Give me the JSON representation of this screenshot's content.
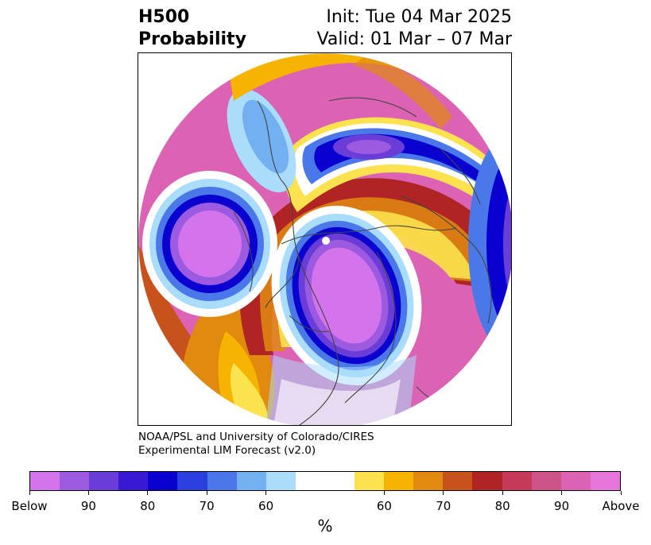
{
  "title": {
    "left_line1": "H500",
    "left_line2": "Probability",
    "right_line1": "Init: Tue 04 Mar 2025",
    "right_line2": "Valid: 01 Mar – 07 Mar"
  },
  "credit": {
    "line1": "NOAA/PSL and University of Colorado/CIRES",
    "line2": "Experimental LIM Forecast (v2.0)"
  },
  "colorbar": {
    "unit": "%",
    "tick_labels": [
      "Below",
      "90",
      "80",
      "70",
      "60",
      "60",
      "70",
      "80",
      "90",
      "Above"
    ],
    "colors": [
      "#d474ec",
      "#9c5ae0",
      "#6a3cd8",
      "#3a18d4",
      "#0a00d0",
      "#2a40dc",
      "#4a78e8",
      "#72b0f2",
      "#aadcfc",
      "#ffffff",
      "#fce24e",
      "#f6b400",
      "#e08a10",
      "#c8521c",
      "#b02424",
      "#c43a58",
      "#cc5486",
      "#dc62b4",
      "#e676dc"
    ]
  },
  "map": {
    "projection": "north polar stereographic",
    "field": "500 hPa height probability (below / above normal)"
  }
}
